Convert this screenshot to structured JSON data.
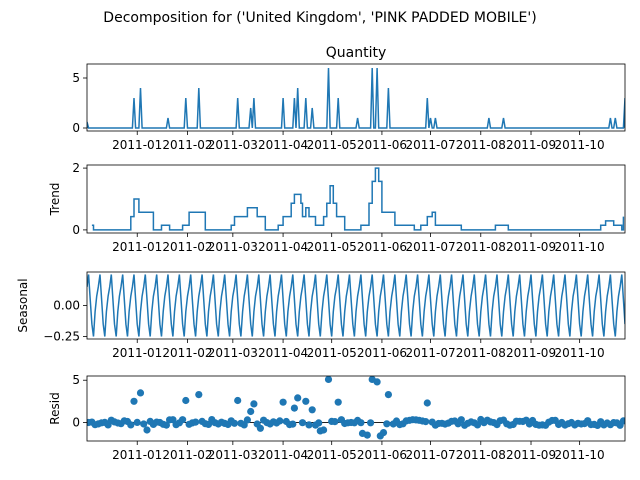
{
  "figure": {
    "suptitle": "Decomposition for ('United Kingdom', 'PINK PADDED MOBILE')",
    "line_color": "#1f77b4"
  },
  "chart_data": [
    {
      "type": "line",
      "title": "Quantity",
      "ylabel": "",
      "ylim": [
        -0.3,
        6.4
      ],
      "xlim": [
        "2010-12-01",
        "2011-10-29"
      ],
      "yticks": [
        0,
        5
      ],
      "ytick_labels": [
        "0",
        "5"
      ],
      "baseline": 0,
      "spikes": [
        {
          "x": "2010-12-01",
          "y": 0.6
        },
        {
          "x": "2010-12-30",
          "y": 3
        },
        {
          "x": "2011-01-03",
          "y": 4
        },
        {
          "x": "2011-01-20",
          "y": 1
        },
        {
          "x": "2011-01-31",
          "y": 3
        },
        {
          "x": "2011-02-08",
          "y": 4
        },
        {
          "x": "2011-03-04",
          "y": 3
        },
        {
          "x": "2011-03-12",
          "y": 2
        },
        {
          "x": "2011-03-14",
          "y": 3
        },
        {
          "x": "2011-04-01",
          "y": 3
        },
        {
          "x": "2011-04-08",
          "y": 3
        },
        {
          "x": "2011-04-10",
          "y": 4
        },
        {
          "x": "2011-04-15",
          "y": 3
        },
        {
          "x": "2011-04-19",
          "y": 2
        },
        {
          "x": "2011-04-29",
          "y": 6
        },
        {
          "x": "2011-05-05",
          "y": 3
        },
        {
          "x": "2011-05-17",
          "y": 1
        },
        {
          "x": "2011-05-26",
          "y": 6
        },
        {
          "x": "2011-05-29",
          "y": 6
        },
        {
          "x": "2011-06-05",
          "y": 4
        },
        {
          "x": "2011-06-29",
          "y": 3
        },
        {
          "x": "2011-07-01",
          "y": 1
        },
        {
          "x": "2011-07-04",
          "y": 1
        },
        {
          "x": "2011-08-06",
          "y": 1
        },
        {
          "x": "2011-08-15",
          "y": 1
        },
        {
          "x": "2011-10-20",
          "y": 1
        },
        {
          "x": "2011-10-23",
          "y": 1
        },
        {
          "x": "2011-10-29",
          "y": 3
        }
      ]
    },
    {
      "type": "line",
      "title": "",
      "ylabel": "Trend",
      "ylim": [
        -0.1,
        2.1
      ],
      "xlim": [
        "2010-12-01",
        "2011-10-29"
      ],
      "yticks": [
        0,
        2
      ],
      "ytick_labels": [
        "0",
        "2"
      ],
      "x": [
        "2010-12-04",
        "2010-12-05",
        "2010-12-25",
        "2010-12-28",
        "2010-12-29",
        "2010-12-30",
        "2011-01-02",
        "2011-01-07",
        "2011-01-11",
        "2011-01-12",
        "2011-01-16",
        "2011-01-19",
        "2011-01-21",
        "2011-01-25",
        "2011-01-28",
        "2011-01-29",
        "2011-02-02",
        "2011-02-03",
        "2011-02-04",
        "2011-02-10",
        "2011-02-12",
        "2011-02-25",
        "2011-02-28",
        "2011-03-02",
        "2011-03-04",
        "2011-03-06",
        "2011-03-10",
        "2011-03-16",
        "2011-03-18",
        "2011-03-21",
        "2011-03-27",
        "2011-03-29",
        "2011-04-01",
        "2011-04-05",
        "2011-04-06",
        "2011-04-08",
        "2011-04-09",
        "2011-04-12",
        "2011-04-13",
        "2011-04-15",
        "2011-04-17",
        "2011-04-19",
        "2011-04-21",
        "2011-04-24",
        "2011-04-26",
        "2011-04-28",
        "2011-04-30",
        "2011-05-02",
        "2011-05-04",
        "2011-05-07",
        "2011-05-09",
        "2011-05-17",
        "2011-05-19",
        "2011-05-22",
        "2011-05-24",
        "2011-05-26",
        "2011-05-28",
        "2011-05-30",
        "2011-06-01",
        "2011-06-02",
        "2011-06-05",
        "2011-06-09",
        "2011-06-10",
        "2011-06-14",
        "2011-06-18",
        "2011-06-21",
        "2011-06-25",
        "2011-06-29",
        "2011-07-02",
        "2011-07-04",
        "2011-07-06",
        "2011-07-10",
        "2011-07-13",
        "2011-07-16",
        "2011-07-20",
        "2011-07-25",
        "2011-08-07",
        "2011-08-10",
        "2011-08-13",
        "2011-08-15",
        "2011-08-18",
        "2011-10-11",
        "2011-10-14",
        "2011-10-17",
        "2011-10-19",
        "2011-10-22",
        "2011-10-24",
        "2011-10-27",
        "2011-10-28"
      ],
      "values": [
        0.15,
        0,
        0,
        0.43,
        0.43,
        1,
        0.57,
        0.57,
        0,
        0,
        0.15,
        0.15,
        0,
        0,
        0,
        0.15,
        0.57,
        0.57,
        0.57,
        0.57,
        0,
        0,
        0.15,
        0.43,
        0.43,
        0.43,
        0.72,
        0.43,
        0.43,
        0,
        0,
        0.15,
        0.43,
        0.43,
        0.86,
        1.15,
        1.15,
        0.86,
        0.43,
        0.72,
        0.43,
        0.43,
        0.15,
        0.15,
        0.43,
        0.86,
        1.43,
        0.86,
        0.43,
        0.43,
        0,
        0,
        0.15,
        0.15,
        0.86,
        1.57,
        2,
        1.57,
        0.57,
        0.57,
        0.57,
        0.15,
        0.15,
        0.15,
        0.15,
        0,
        0.15,
        0.43,
        0.57,
        0.15,
        0.15,
        0.15,
        0.15,
        0.15,
        0,
        0,
        0,
        0.15,
        0.15,
        0.15,
        0,
        0,
        0.15,
        0.29,
        0.29,
        0.15,
        0.15,
        0,
        0.43
      ]
    },
    {
      "type": "line",
      "title": "",
      "ylabel": "Seasonal",
      "ylim": [
        -0.27,
        0.27
      ],
      "xlim": [
        "2010-12-01",
        "2011-10-29"
      ],
      "period_days": 7,
      "amplitude": 0.25,
      "yticks": [
        0.0,
        -0.25
      ],
      "ytick_labels": [
        "0.00",
        "−0.25"
      ]
    },
    {
      "type": "scatter",
      "title": "",
      "ylabel": "Resid",
      "ylim": [
        -2.2,
        5.5
      ],
      "xlim": [
        "2010-12-01",
        "2011-10-29"
      ],
      "yticks": [
        0,
        5
      ],
      "ytick_labels": [
        "0",
        "5"
      ],
      "baseline": 0,
      "outliers": [
        {
          "x": "2010-12-30",
          "y": 2.5
        },
        {
          "x": "2011-01-03",
          "y": 3.5
        },
        {
          "x": "2011-01-31",
          "y": 2.6
        },
        {
          "x": "2011-02-08",
          "y": 3.3
        },
        {
          "x": "2011-03-04",
          "y": 2.6
        },
        {
          "x": "2011-03-12",
          "y": 1.3
        },
        {
          "x": "2011-03-14",
          "y": 2.2
        },
        {
          "x": "2011-04-01",
          "y": 2.4
        },
        {
          "x": "2011-04-08",
          "y": 1.7
        },
        {
          "x": "2011-04-10",
          "y": 2.9
        },
        {
          "x": "2011-04-15",
          "y": 2.5
        },
        {
          "x": "2011-04-19",
          "y": 1.5
        },
        {
          "x": "2011-04-29",
          "y": 5.1
        },
        {
          "x": "2011-05-05",
          "y": 2.4
        },
        {
          "x": "2011-05-26",
          "y": 5.1
        },
        {
          "x": "2011-05-29",
          "y": 4.8
        },
        {
          "x": "2011-06-05",
          "y": 3.3
        },
        {
          "x": "2011-06-29",
          "y": 2.3
        },
        {
          "x": "2011-05-20",
          "y": -1.3
        },
        {
          "x": "2011-05-23",
          "y": -1.5
        },
        {
          "x": "2011-05-31",
          "y": -1.6
        },
        {
          "x": "2011-06-02",
          "y": -1.2
        },
        {
          "x": "2011-01-07",
          "y": -0.9
        },
        {
          "x": "2011-04-24",
          "y": -1.0
        },
        {
          "x": "2011-04-26",
          "y": -0.9
        },
        {
          "x": "2011-03-18",
          "y": -0.7
        }
      ]
    }
  ],
  "xaxis": {
    "tick_dates": [
      "2011-01-01",
      "2011-02-01",
      "2011-03-01",
      "2011-04-01",
      "2011-05-01",
      "2011-06-01",
      "2011-07-01",
      "2011-08-01",
      "2011-09-01",
      "2011-10-01"
    ],
    "tick_labels": [
      "2011-01",
      "2011-02",
      "2011-03",
      "2011-04",
      "2011-05",
      "2011-06",
      "2011-07",
      "2011-08",
      "2011-09",
      "2011-10"
    ]
  }
}
